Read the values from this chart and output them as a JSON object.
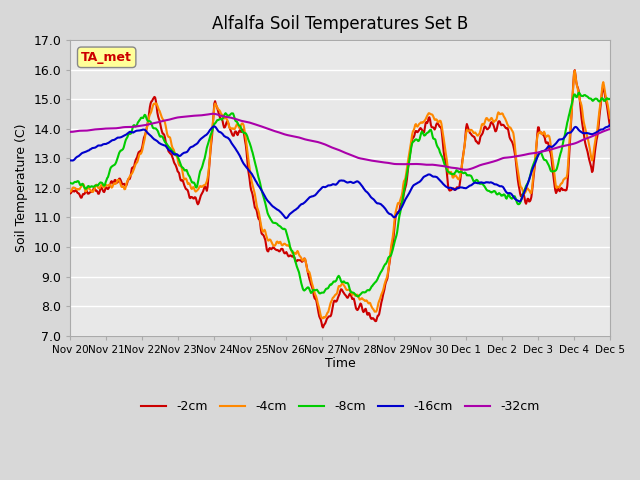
{
  "title": "Alfalfa Soil Temperatures Set B",
  "xlabel": "Time",
  "ylabel": "Soil Temperature (C)",
  "ylim": [
    7.0,
    17.0
  ],
  "yticks": [
    7.0,
    8.0,
    9.0,
    10.0,
    11.0,
    12.0,
    13.0,
    14.0,
    15.0,
    16.0,
    17.0
  ],
  "xtick_labels": [
    "Nov 20",
    "Nov 21",
    "Nov 22",
    "Nov 23",
    "Nov 24",
    "Nov 25",
    "Nov 26",
    "Nov 27",
    "Nov 28",
    "Nov 29",
    "Nov 30",
    "Dec 1",
    "Dec 2",
    "Dec 3",
    "Dec 4",
    "Dec 5"
  ],
  "series_colors": {
    "-2cm": "#cc0000",
    "-4cm": "#ff8800",
    "-8cm": "#00cc00",
    "-16cm": "#0000cc",
    "-32cm": "#aa00aa"
  },
  "series_labels": [
    "-2cm",
    "-4cm",
    "-8cm",
    "-16cm",
    "-32cm"
  ],
  "legend_colors": [
    "#cc0000",
    "#ff8800",
    "#00cc00",
    "#0000cc",
    "#aa00aa"
  ],
  "ta_met_box_color": "#ffff99",
  "ta_met_text_color": "#cc0000",
  "background_color": "#e8e8e8",
  "plot_bg_color": "#e8e8e8",
  "grid_color": "#ffffff",
  "linewidth": 1.5
}
